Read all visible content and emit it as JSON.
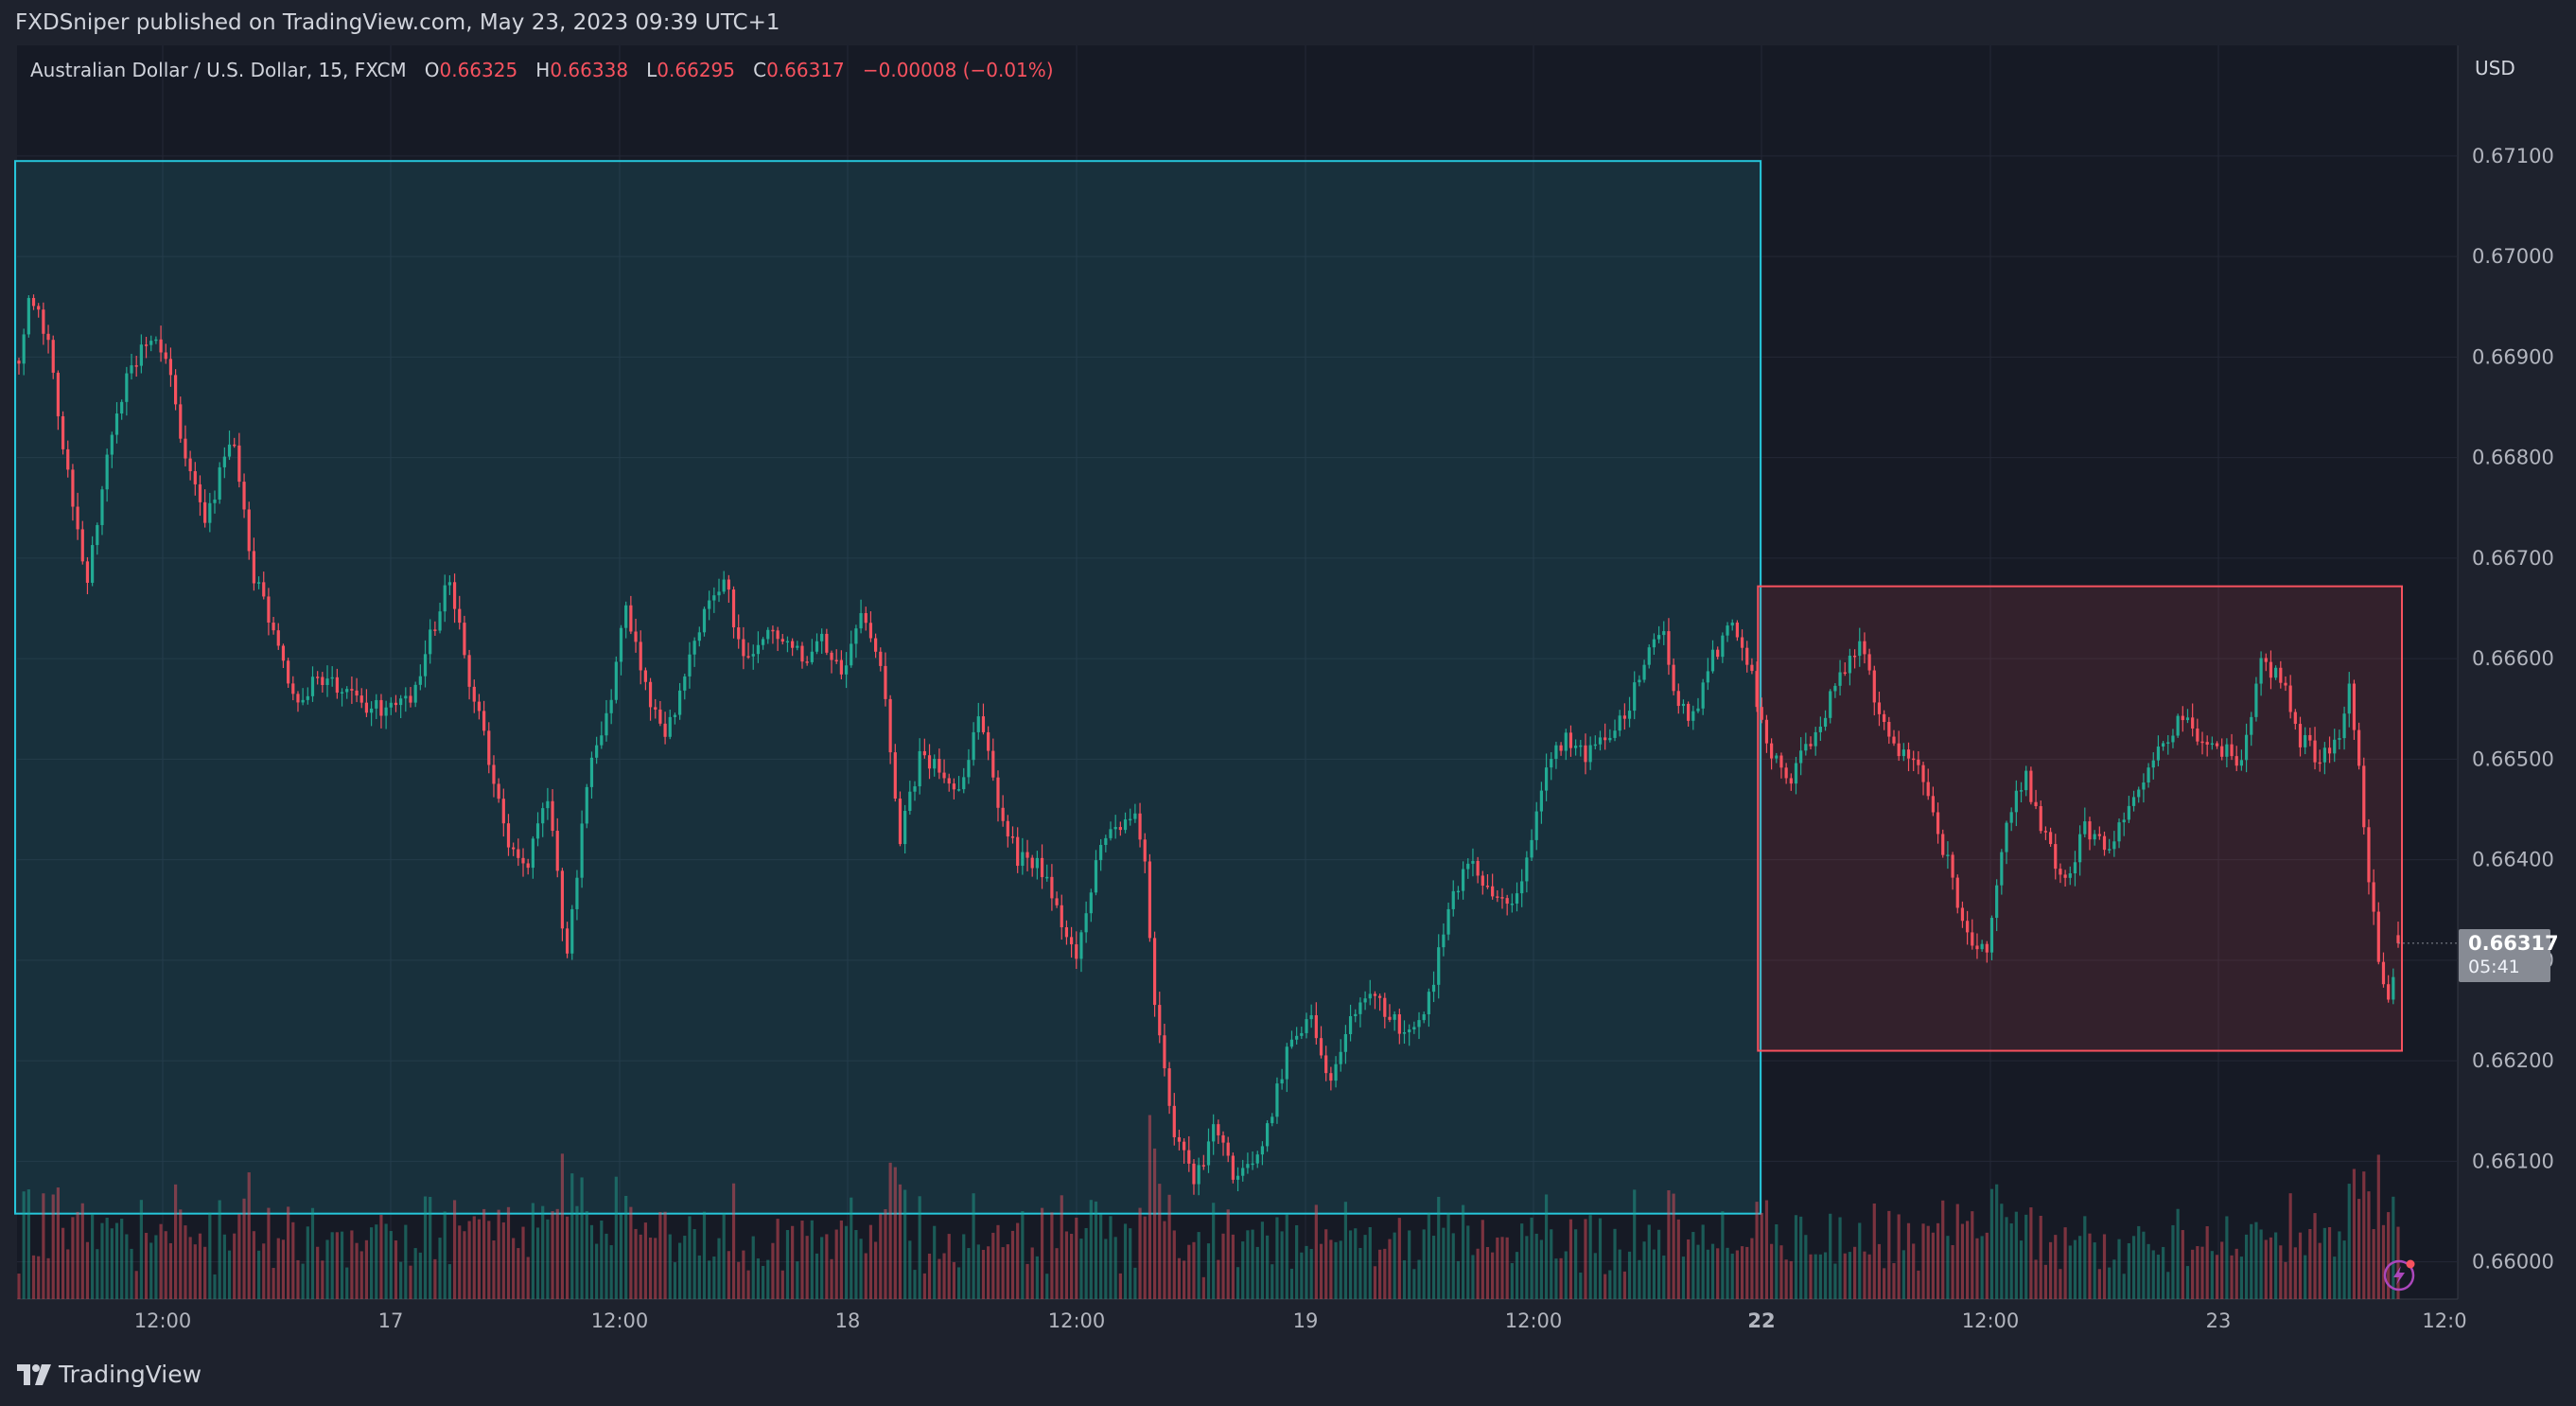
{
  "publish_text": "FXDSniper published on TradingView.com, May 23, 2023 09:39 UTC+1",
  "legend": {
    "symbol": "Australian Dollar / U.S. Dollar, 15, FXCM",
    "open_label": "O",
    "open": "0.66325",
    "high_label": "H",
    "high": "0.66338",
    "low_label": "L",
    "low": "0.66295",
    "close_label": "C",
    "close": "0.66317",
    "change": "−0.00008 (−0.01%)"
  },
  "currency": "USD",
  "last_price": {
    "price": "0.66317",
    "countdown": "05:41"
  },
  "footer": {
    "brand": "TradingView"
  },
  "colors": {
    "up": "#22ab94",
    "down": "#f7525f",
    "background": "#161a25",
    "panel": "#1e222d"
  },
  "icons": [
    "tradingview-logo-icon",
    "lightning-bolt-icon"
  ],
  "chart_data": {
    "type": "candlestick",
    "instrument": "AUDUSD",
    "interval": "15",
    "x_ticks": [
      "12:00",
      "17",
      "12:00",
      "18",
      "12:00",
      "19",
      "12:00",
      "22",
      "12:00",
      "23",
      "12:0"
    ],
    "y_ticks": [
      "0.67100",
      "0.67000",
      "0.66900",
      "0.66800",
      "0.66700",
      "0.66600",
      "0.66500",
      "0.66400",
      "0.66300",
      "0.66200",
      "0.66100",
      "0.66000"
    ],
    "ylim": [
      0.65963,
      0.6721
    ],
    "waypoints": [
      [
        0,
        0.669
      ],
      [
        2,
        0.6696
      ],
      [
        6,
        0.6692
      ],
      [
        10,
        0.6678
      ],
      [
        14,
        0.6668
      ],
      [
        18,
        0.668
      ],
      [
        22,
        0.6688
      ],
      [
        26,
        0.6692
      ],
      [
        30,
        0.669
      ],
      [
        34,
        0.668
      ],
      [
        38,
        0.6673
      ],
      [
        42,
        0.668
      ],
      [
        44,
        0.6682
      ],
      [
        48,
        0.6668
      ],
      [
        52,
        0.6663
      ],
      [
        56,
        0.6656
      ],
      [
        62,
        0.6658
      ],
      [
        68,
        0.6656
      ],
      [
        74,
        0.6655
      ],
      [
        80,
        0.6656
      ],
      [
        84,
        0.6662
      ],
      [
        88,
        0.6668
      ],
      [
        92,
        0.6658
      ],
      [
        96,
        0.665
      ],
      [
        100,
        0.6642
      ],
      [
        104,
        0.664
      ],
      [
        108,
        0.6646
      ],
      [
        112,
        0.663
      ],
      [
        116,
        0.6648
      ],
      [
        120,
        0.6654
      ],
      [
        124,
        0.6665
      ],
      [
        128,
        0.6657
      ],
      [
        132,
        0.6652
      ],
      [
        136,
        0.6658
      ],
      [
        140,
        0.6665
      ],
      [
        144,
        0.6668
      ],
      [
        148,
        0.666
      ],
      [
        152,
        0.6662
      ],
      [
        156,
        0.6662
      ],
      [
        160,
        0.666
      ],
      [
        164,
        0.6662
      ],
      [
        168,
        0.6658
      ],
      [
        172,
        0.6665
      ],
      [
        176,
        0.666
      ],
      [
        180,
        0.6642
      ],
      [
        184,
        0.665
      ],
      [
        188,
        0.6649
      ],
      [
        192,
        0.6647
      ],
      [
        196,
        0.6654
      ],
      [
        200,
        0.6646
      ],
      [
        204,
        0.664
      ],
      [
        208,
        0.664
      ],
      [
        212,
        0.6635
      ],
      [
        216,
        0.663
      ],
      [
        220,
        0.664
      ],
      [
        224,
        0.6643
      ],
      [
        228,
        0.6644
      ],
      [
        230,
        0.664
      ],
      [
        232,
        0.6625
      ],
      [
        236,
        0.6613
      ],
      [
        240,
        0.6608
      ],
      [
        244,
        0.6613
      ],
      [
        248,
        0.6609
      ],
      [
        252,
        0.6609
      ],
      [
        256,
        0.6615
      ],
      [
        260,
        0.6623
      ],
      [
        264,
        0.6624
      ],
      [
        268,
        0.6618
      ],
      [
        272,
        0.6625
      ],
      [
        276,
        0.6627
      ],
      [
        280,
        0.6624
      ],
      [
        284,
        0.6623
      ],
      [
        288,
        0.6626
      ],
      [
        292,
        0.6635
      ],
      [
        296,
        0.664
      ],
      [
        300,
        0.6637
      ],
      [
        304,
        0.6635
      ],
      [
        308,
        0.664
      ],
      [
        312,
        0.665
      ],
      [
        316,
        0.6652
      ],
      [
        320,
        0.665
      ],
      [
        324,
        0.6652
      ],
      [
        328,
        0.6654
      ],
      [
        332,
        0.666
      ],
      [
        336,
        0.6663
      ],
      [
        338,
        0.6656
      ],
      [
        342,
        0.6654
      ],
      [
        346,
        0.666
      ],
      [
        350,
        0.6664
      ],
      [
        354,
        0.6658
      ],
      [
        358,
        0.665
      ],
      [
        362,
        0.6648
      ],
      [
        366,
        0.6652
      ],
      [
        370,
        0.6656
      ],
      [
        374,
        0.666
      ],
      [
        376,
        0.6662
      ],
      [
        380,
        0.6654
      ],
      [
        384,
        0.6651
      ],
      [
        388,
        0.665
      ],
      [
        392,
        0.6642
      ],
      [
        394,
        0.664
      ],
      [
        398,
        0.6632
      ],
      [
        402,
        0.6631
      ],
      [
        406,
        0.6644
      ],
      [
        410,
        0.6648
      ],
      [
        414,
        0.6642
      ],
      [
        418,
        0.6638
      ],
      [
        422,
        0.6643
      ],
      [
        426,
        0.6641
      ],
      [
        430,
        0.6644
      ],
      [
        434,
        0.6648
      ],
      [
        438,
        0.6652
      ],
      [
        442,
        0.6654
      ],
      [
        446,
        0.6652
      ],
      [
        450,
        0.6651
      ],
      [
        454,
        0.665
      ],
      [
        458,
        0.666
      ],
      [
        462,
        0.6658
      ],
      [
        466,
        0.6652
      ],
      [
        470,
        0.665
      ],
      [
        474,
        0.6652
      ],
      [
        476,
        0.6658
      ],
      [
        478,
        0.6649
      ],
      [
        480,
        0.6638
      ],
      [
        482,
        0.663
      ],
      [
        484,
        0.6626
      ],
      [
        486,
        0.66317
      ]
    ],
    "annotations": [
      {
        "type": "rectangle",
        "color": "#26c6da",
        "t_start": 0,
        "t_end": 355,
        "price_top": 0.67095,
        "price_bottom": 0.66048
      },
      {
        "type": "rectangle",
        "color": "#f7525f",
        "t_start": 356,
        "t_end": 486,
        "price_top": 0.66672,
        "price_bottom": 0.6621
      }
    ]
  }
}
